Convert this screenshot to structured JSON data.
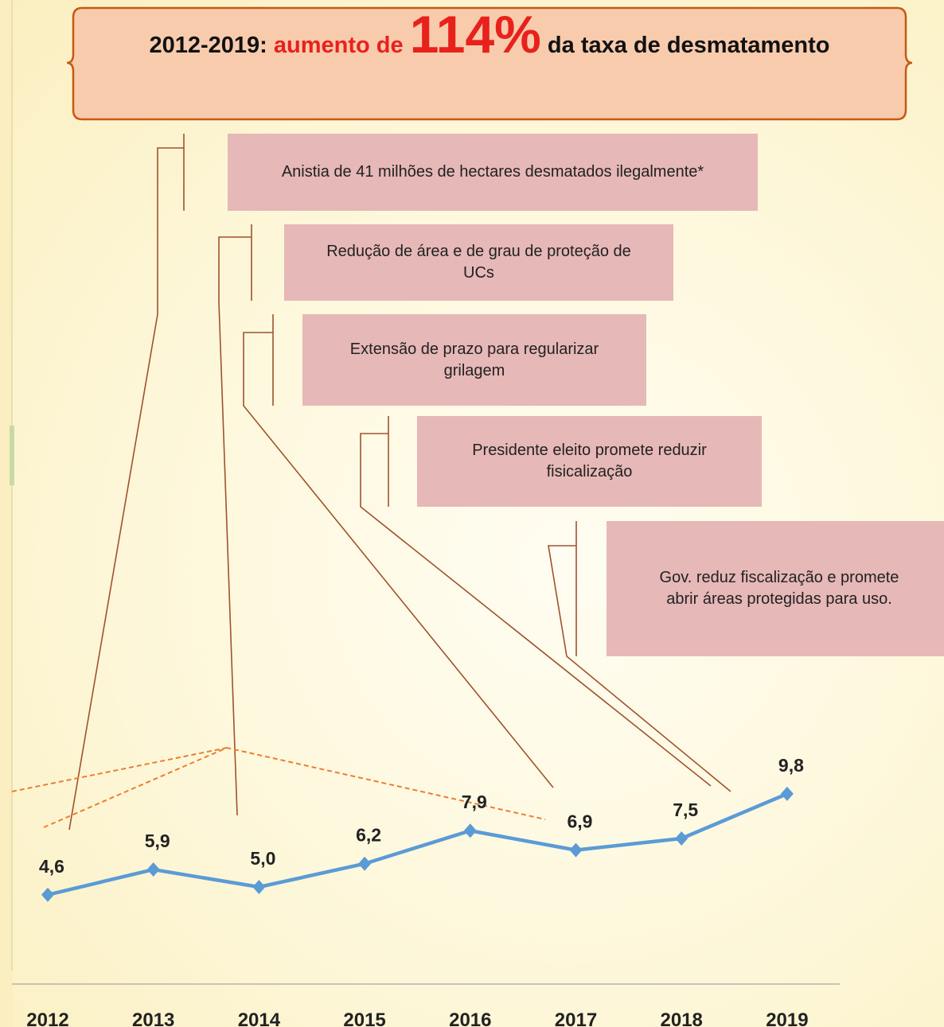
{
  "title": {
    "parts": [
      "2012-2019: ",
      "aumento de ",
      "114%",
      " da taxa de desmatamento"
    ]
  },
  "annotations": [
    "Anistia de 41 milhões de hectares desmatados ilegalmente*",
    "Redução de área e de grau de proteção de UCs",
    "Extensão de prazo para regularizar grilagem",
    "Presidente eleito promete reduzir fisicalização",
    "Gov. reduz fiscalização e promete abrir áreas protegidas para uso."
  ],
  "chart_data": {
    "type": "line",
    "categories": [
      "2012",
      "2013",
      "2014",
      "2015",
      "2016",
      "2017",
      "2018",
      "2019"
    ],
    "series": [
      {
        "color": "#5b9bd5",
        "values": [
          4.6,
          5.9,
          5.0,
          6.2,
          7.9,
          6.9,
          7.5,
          9.8
        ],
        "value_labels": [
          "4,6",
          "5,9",
          "5,0",
          "6,2",
          "7,9",
          "6,9",
          "7,5",
          "9,8"
        ]
      }
    ],
    "ylim": [
      0,
      10
    ]
  }
}
